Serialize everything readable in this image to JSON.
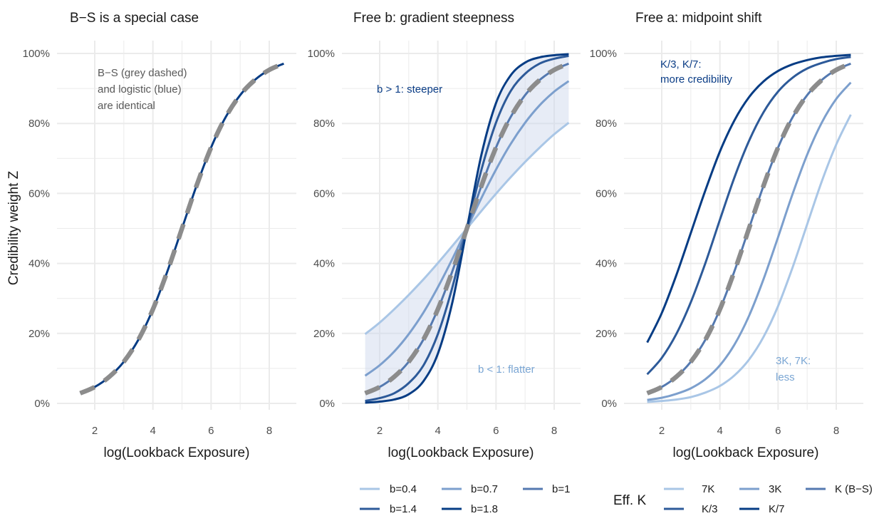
{
  "y_label": "Credibility weight Z",
  "colors": {
    "grid": "#ebebeb",
    "bs_dashed": "#8c8c8c",
    "shade": "#c9d5ea",
    "annot_dark": "#0b3d86",
    "annot_light": "#7aa6d4",
    "annot_grey": "#595959"
  },
  "panels": [
    {
      "title": "B−S is a special case",
      "xlabel": "log(Lookback Exposure)",
      "annotation": [
        "B−S (grey dashed)",
        "and logistic (blue)",
        "are identical"
      ]
    },
    {
      "title": "Free b: gradient steepness",
      "xlabel": "log(Lookback Exposure)",
      "annotation_top": "b > 1: steeper",
      "annotation_bottom": "b < 1: flatter"
    },
    {
      "title": "Free a: midpoint shift",
      "xlabel": "log(Lookback Exposure)",
      "annotation_top": [
        "K/3, K/7:",
        "more credibility"
      ],
      "annotation_bottom": [
        "3K, 7K:",
        "less"
      ]
    }
  ],
  "legend_b": {
    "items": [
      {
        "label": "b=0.4",
        "color": "#a9c6e6"
      },
      {
        "label": "b=0.7",
        "color": "#7c9fcd"
      },
      {
        "label": "b=1",
        "color": "#5479b0"
      },
      {
        "label": "b=1.4",
        "color": "#2d5a99"
      },
      {
        "label": "b=1.8",
        "color": "#063c84"
      }
    ]
  },
  "legend_a": {
    "title": "Eff. K",
    "items": [
      {
        "label": "7K",
        "color": "#a9c6e6"
      },
      {
        "label": "3K",
        "color": "#7c9fcd"
      },
      {
        "label": "K (B−S)",
        "color": "#5479b0"
      },
      {
        "label": "K/3",
        "color": "#2d5a99"
      },
      {
        "label": "K/7",
        "color": "#063c84"
      }
    ]
  },
  "chart_data": [
    {
      "type": "line",
      "title": "B−S is a special case",
      "xlabel": "log(Lookback Exposure)",
      "ylabel": "Credibility weight Z",
      "xlim": [
        1.5,
        8.5
      ],
      "ylim": [
        0,
        1
      ],
      "x_ticks": [
        2,
        4,
        6,
        8
      ],
      "y_ticks": [
        0,
        0.2,
        0.4,
        0.6,
        0.8,
        1.0
      ],
      "y_tick_labels": [
        "0%",
        "20%",
        "40%",
        "60%",
        "80%",
        "100%"
      ],
      "grid": true,
      "x": [
        1.5,
        2,
        2.5,
        3,
        3.5,
        4,
        4.5,
        5,
        5.5,
        6,
        6.5,
        7,
        7.5,
        8,
        8.5
      ],
      "series": [
        {
          "values": [
            0.029,
            0.047,
            0.076,
            0.119,
            0.182,
            0.269,
            0.378,
            0.5,
            0.622,
            0.731,
            0.818,
            0.881,
            0.924,
            0.953,
            0.971
          ],
          "color": "#063c84",
          "style": "solid"
        },
        {
          "values": [
            0.029,
            0.047,
            0.076,
            0.119,
            0.182,
            0.269,
            0.378,
            0.5,
            0.622,
            0.731,
            0.818,
            0.881,
            0.924,
            0.953,
            0.971
          ],
          "color": "#8c8c8c",
          "style": "dashed"
        }
      ]
    },
    {
      "type": "line",
      "title": "Free b: gradient steepness",
      "xlabel": "log(Lookback Exposure)",
      "xlim": [
        1.5,
        8.5
      ],
      "ylim": [
        0,
        1
      ],
      "x_ticks": [
        2,
        4,
        6,
        8
      ],
      "y_ticks": [
        0,
        0.2,
        0.4,
        0.6,
        0.8,
        1.0
      ],
      "y_tick_labels": [
        "0%",
        "20%",
        "40%",
        "60%",
        "80%",
        "100%"
      ],
      "grid": true,
      "shaded_band_between": [
        "b=0.4",
        "b=1.8"
      ],
      "x": [
        1.5,
        2,
        2.5,
        3,
        3.5,
        4,
        4.5,
        5,
        5.5,
        6,
        6.5,
        7,
        7.5,
        8,
        8.5
      ],
      "series": [
        {
          "name": "b=0.4",
          "values": [
            0.198,
            0.231,
            0.269,
            0.31,
            0.354,
            0.401,
            0.45,
            0.5,
            0.55,
            0.599,
            0.646,
            0.69,
            0.731,
            0.769,
            0.802
          ],
          "color": "#a9c6e6"
        },
        {
          "name": "b=0.7",
          "values": [
            0.079,
            0.109,
            0.148,
            0.198,
            0.259,
            0.332,
            0.413,
            0.5,
            0.587,
            0.668,
            0.741,
            0.802,
            0.852,
            0.891,
            0.921
          ],
          "color": "#7c9fcd"
        },
        {
          "name": "b=1",
          "values": [
            0.029,
            0.047,
            0.076,
            0.119,
            0.182,
            0.269,
            0.378,
            0.5,
            0.622,
            0.731,
            0.818,
            0.881,
            0.924,
            0.953,
            0.971
          ],
          "color": "#5479b0"
        },
        {
          "name": "b=1.4",
          "values": [
            0.007,
            0.015,
            0.029,
            0.058,
            0.108,
            0.198,
            0.332,
            0.5,
            0.668,
            0.802,
            0.892,
            0.942,
            0.971,
            0.985,
            0.993
          ],
          "color": "#2d5a99"
        },
        {
          "name": "b=1.8",
          "values": [
            0.002,
            0.005,
            0.011,
            0.026,
            0.063,
            0.142,
            0.289,
            0.5,
            0.711,
            0.858,
            0.937,
            0.974,
            0.989,
            0.995,
            0.998
          ],
          "color": "#063c84"
        },
        {
          "values": [
            0.029,
            0.047,
            0.076,
            0.119,
            0.182,
            0.269,
            0.378,
            0.5,
            0.622,
            0.731,
            0.818,
            0.881,
            0.924,
            0.953,
            0.971
          ],
          "color": "#8c8c8c",
          "style": "dashed"
        }
      ]
    },
    {
      "type": "line",
      "title": "Free a: midpoint shift",
      "xlabel": "log(Lookback Exposure)",
      "xlim": [
        1.5,
        8.5
      ],
      "ylim": [
        0,
        1
      ],
      "x_ticks": [
        2,
        4,
        6,
        8
      ],
      "y_ticks": [
        0,
        0.2,
        0.4,
        0.6,
        0.8,
        1.0
      ],
      "y_tick_labels": [
        "0%",
        "20%",
        "40%",
        "60%",
        "80%",
        "100%"
      ],
      "grid": true,
      "legend_title": "Eff. K",
      "x": [
        1.5,
        2,
        2.5,
        3,
        3.5,
        4,
        4.5,
        5,
        5.5,
        6,
        6.5,
        7,
        7.5,
        8,
        8.5
      ],
      "series": [
        {
          "name": "7K",
          "values": [
            0.004,
            0.007,
            0.011,
            0.018,
            0.031,
            0.05,
            0.08,
            0.125,
            0.19,
            0.278,
            0.389,
            0.512,
            0.634,
            0.74,
            0.825
          ],
          "color": "#a9c6e6"
        },
        {
          "name": "3K",
          "values": [
            0.01,
            0.016,
            0.027,
            0.043,
            0.069,
            0.109,
            0.168,
            0.25,
            0.355,
            0.475,
            0.599,
            0.711,
            0.802,
            0.87,
            0.917
          ],
          "color": "#7c9fcd"
        },
        {
          "name": "K (B−S)",
          "values": [
            0.029,
            0.047,
            0.076,
            0.119,
            0.182,
            0.269,
            0.378,
            0.5,
            0.622,
            0.731,
            0.818,
            0.881,
            0.924,
            0.953,
            0.971
          ],
          "color": "#5479b0"
        },
        {
          "name": "K/3",
          "values": [
            0.083,
            0.13,
            0.198,
            0.289,
            0.401,
            0.525,
            0.646,
            0.75,
            0.832,
            0.891,
            0.931,
            0.957,
            0.973,
            0.984,
            0.99
          ],
          "color": "#2d5a99"
        },
        {
          "name": "K/7",
          "values": [
            0.174,
            0.258,
            0.366,
            0.487,
            0.609,
            0.72,
            0.809,
            0.875,
            0.92,
            0.95,
            0.969,
            0.981,
            0.989,
            0.993,
            0.996
          ],
          "color": "#063c84"
        },
        {
          "values": [
            0.029,
            0.047,
            0.076,
            0.119,
            0.182,
            0.269,
            0.378,
            0.5,
            0.622,
            0.731,
            0.818,
            0.881,
            0.924,
            0.953,
            0.971
          ],
          "color": "#8c8c8c",
          "style": "dashed"
        }
      ]
    }
  ]
}
